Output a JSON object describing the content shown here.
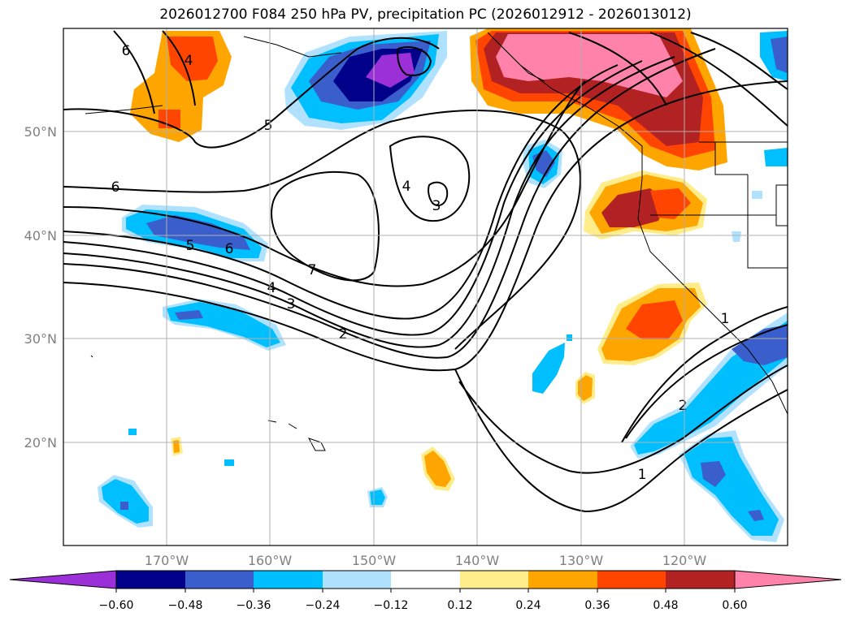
{
  "title": "2026012700 F084 250 hPa PV, precipitation PC (2026012912 - 2026013012)",
  "map": {
    "projection": "PlateCarree",
    "lon_range": [
      -180,
      -110
    ],
    "lat_range": [
      10,
      60
    ],
    "lon_ticks": [
      "170°W",
      "160°W",
      "150°W",
      "140°W",
      "130°W",
      "120°W"
    ],
    "lat_ticks": [
      "50°N",
      "40°N",
      "30°N",
      "20°N"
    ],
    "gridlines": true
  },
  "colorbar": {
    "ticks": [
      "−0.60",
      "−0.48",
      "−0.36",
      "−0.24",
      "−0.12",
      "0.12",
      "0.24",
      "0.36",
      "0.48",
      "0.60"
    ],
    "colors": [
      "#9b30d9",
      "#00008b",
      "#3a5fcd",
      "#00bfff",
      "#b0e2ff",
      "#ffffff",
      "#ffec8b",
      "#ffa500",
      "#ff4500",
      "#b22222",
      "#ff82ab"
    ],
    "extend": "both"
  },
  "contour_labels": [
    "6",
    "5",
    "6",
    "5",
    "6",
    "7",
    "4",
    "3",
    "2",
    "4",
    "3",
    "1",
    "2",
    "1",
    "4"
  ]
}
